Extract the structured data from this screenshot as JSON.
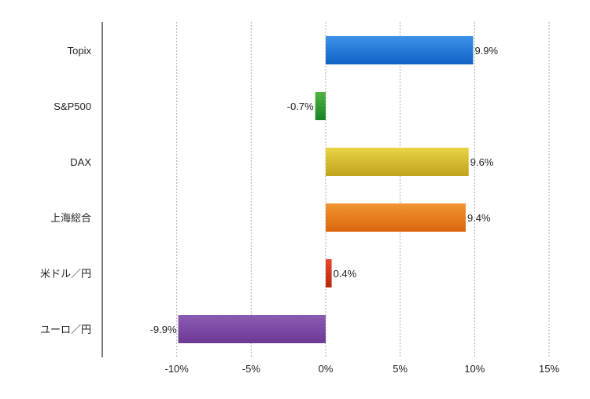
{
  "chart_data": {
    "type": "bar",
    "orientation": "horizontal",
    "title": "",
    "xlabel": "",
    "ylabel": "",
    "categories": [
      "Topix",
      "S&P500",
      "DAX",
      "上海総合",
      "米ドル／円",
      "ユーロ／円"
    ],
    "values": [
      9.9,
      -0.7,
      9.6,
      9.4,
      0.4,
      -9.9
    ],
    "data_labels": [
      "9.9%",
      "-0.7%",
      "9.6%",
      "9.4%",
      "0.4%",
      "-9.9%"
    ],
    "colors": [
      [
        "#3d92e8",
        "#0f62c4"
      ],
      [
        "#52b341",
        "#178326"
      ],
      [
        "#ead447",
        "#bfa31c"
      ],
      [
        "#f29534",
        "#d9660e"
      ],
      [
        "#e4492a",
        "#b8280a"
      ],
      [
        "#8b5cb3",
        "#6c3995"
      ]
    ],
    "xlim": [
      -15,
      15
    ],
    "xticks": [
      -10,
      -5,
      0,
      5,
      10,
      15
    ],
    "xtick_labels": [
      "-10%",
      "-5%",
      "0%",
      "5%",
      "10%",
      "15%"
    ],
    "grid": "vertical dotted",
    "legend": "none"
  }
}
